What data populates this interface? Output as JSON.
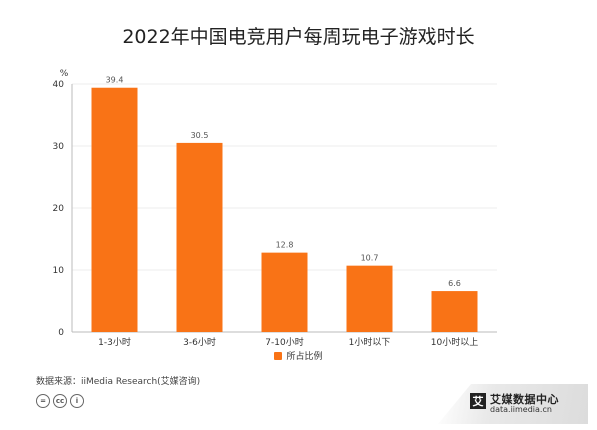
{
  "chart_data": {
    "type": "bar",
    "title": "2022年中国电竞用户每周玩电子游戏时长",
    "unit": "%",
    "categories": [
      "1-3小时",
      "3-6小时",
      "7-10小时",
      "1小时以下",
      "10小时以上"
    ],
    "series": [
      {
        "name": "所占比例",
        "values": [
          39.4,
          30.5,
          12.8,
          10.7,
          6.6
        ]
      }
    ],
    "yticks": [
      0,
      10,
      20,
      30,
      40
    ],
    "ylim": [
      0,
      40
    ],
    "grid": true,
    "legend_position": "bottom"
  },
  "colors": {
    "bar": "#f97316",
    "axis": "#bbbbbb",
    "grid": "#eeeeee",
    "text": "#333333"
  },
  "footer": {
    "source": "数据来源：iiMedia Research(艾媒咨询)",
    "license_icons": [
      "=",
      "cc",
      "i"
    ],
    "brand_logo": "艾",
    "brand_name": "艾媒数据中心",
    "brand_url": "data.iimedia.cn"
  }
}
